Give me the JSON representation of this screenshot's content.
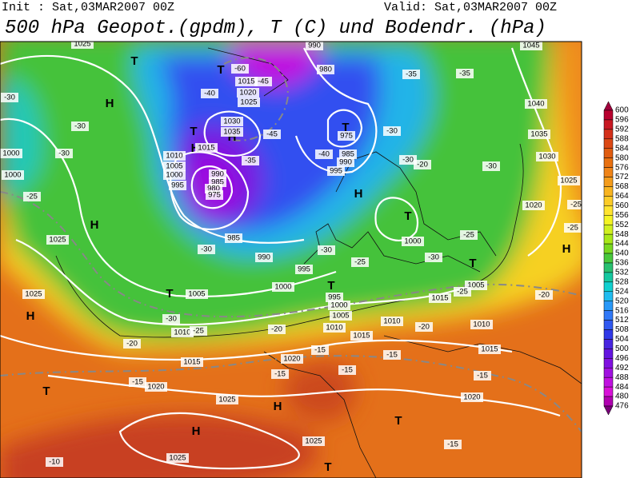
{
  "header": {
    "init": "Init : Sat,03MAR2007 00Z",
    "valid": "Valid: Sat,03MAR2007 00Z",
    "title": "500 hPa Geopot.(gpdm), T (C) und Bodendr. (hPa)"
  },
  "colorbar": {
    "labels": [
      600,
      596,
      592,
      588,
      584,
      580,
      576,
      572,
      568,
      564,
      560,
      556,
      552,
      548,
      544,
      540,
      536,
      532,
      528,
      524,
      520,
      516,
      512,
      508,
      504,
      500,
      496,
      492,
      488,
      484,
      480,
      476
    ],
    "colors": [
      "#a0003c",
      "#b8002e",
      "#c81822",
      "#d4301a",
      "#dc4814",
      "#e05c10",
      "#e87010",
      "#f08418",
      "#f49c1c",
      "#f8b420",
      "#fccc28",
      "#ffe430",
      "#f4f424",
      "#d0f020",
      "#a8e818",
      "#78d820",
      "#48c83c",
      "#28c070",
      "#14c8a0",
      "#10d0d0",
      "#20bcf0",
      "#2898f8",
      "#3078f8",
      "#3058f0",
      "#3038e8",
      "#4824e0",
      "#6414e0",
      "#8010e0",
      "#a010e0",
      "#c010e0",
      "#d810d8",
      "#b000b0",
      "#780078"
    ]
  },
  "map": {
    "labels": [
      "-30",
      "-30",
      "-30",
      "1000",
      "1000",
      "-25",
      "1025",
      "1025",
      "H",
      "H",
      "H",
      "T",
      "T",
      "T",
      "H",
      "H",
      "T",
      "H",
      "T",
      "T",
      "H",
      "T",
      "T",
      "T",
      "H",
      "H",
      "T",
      "T",
      "1015",
      "1020",
      "1025",
      "1030",
      "1035",
      "1015",
      "1010",
      "1005",
      "1000",
      "995",
      "990",
      "985",
      "980",
      "975",
      "985",
      "990",
      "995",
      "1000",
      "1005",
      "1010",
      "1015",
      "1020",
      "1025",
      "1025",
      "1025",
      "1020",
      "1015",
      "1010",
      "1015",
      "1010",
      "1005",
      "1000",
      "995",
      "1000",
      "1005",
      "1015",
      "1010",
      "985",
      "990",
      "995",
      "975",
      "980",
      "990",
      "1035",
      "1030",
      "1040",
      "1045",
      "1025",
      "1020",
      "1020",
      "1025",
      "-60",
      "-45",
      "-40",
      "-45",
      "-40",
      "-35",
      "-35",
      "-35",
      "-30",
      "-30",
      "-20",
      "-30",
      "-25",
      "-25",
      "-25",
      "-25",
      "-30",
      "-30",
      "-30",
      "-25",
      "-20",
      "-20",
      "-30",
      "-25",
      "-20",
      "-15",
      "-15",
      "-15",
      "-15",
      "-15",
      "-10",
      "-15",
      "-20",
      "-15"
    ]
  }
}
